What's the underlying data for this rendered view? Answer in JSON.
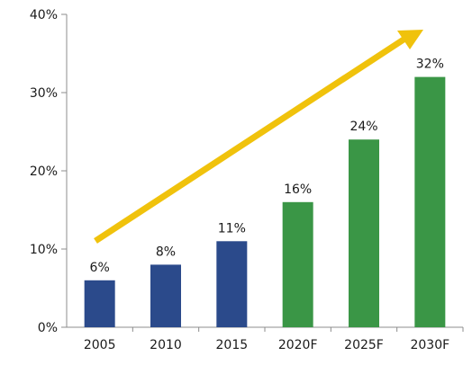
{
  "chart_data": {
    "type": "bar",
    "title": "",
    "xlabel": "",
    "ylabel": "",
    "categories": [
      "2005",
      "2010",
      "2015",
      "2020F",
      "2025F",
      "2030F"
    ],
    "values": [
      6,
      8,
      11,
      16,
      24,
      32
    ],
    "data_labels": [
      "6%",
      "8%",
      "11%",
      "16%",
      "24%",
      "32%"
    ],
    "bar_colors": [
      "#2B4A8B",
      "#2B4A8B",
      "#2B4A8B",
      "#3A9646",
      "#3A9646",
      "#3A9646"
    ],
    "ylim": [
      0,
      40
    ],
    "yticks": [
      0,
      10,
      20,
      30,
      40
    ],
    "ytick_labels": [
      "0%",
      "10%",
      "20%",
      "30%",
      "40%"
    ],
    "grid": false,
    "trend_arrow": {
      "color": "#F0C20C"
    }
  }
}
